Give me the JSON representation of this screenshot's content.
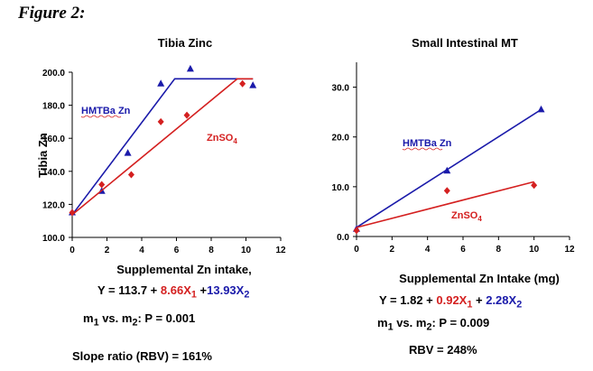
{
  "figure_label": "Figure 2:",
  "colors": {
    "red": "#d42020",
    "blue": "#1a1aaa",
    "axis": "#000000"
  },
  "chart_data": [
    {
      "type": "scatter",
      "title": "Tibia Zinc",
      "xlabel": "Supplemental Zn intake,",
      "ylabel": "Tibia Zn",
      "xlim": [
        0,
        12
      ],
      "ylim": [
        100,
        200
      ],
      "xticks": [
        "0",
        "2",
        "4",
        "6",
        "8",
        "10",
        "12"
      ],
      "yticks": [
        "100.0",
        "120.0",
        "140.0",
        "160.0",
        "180.0",
        "200.0"
      ],
      "series": [
        {
          "name": "HMTBa Zn",
          "color": "#1a1aaa",
          "marker": "triangle",
          "x": [
            0,
            1.7,
            3.2,
            5.1,
            6.8,
            10.4
          ],
          "y": [
            115,
            128,
            151,
            193,
            202,
            192
          ],
          "fit": {
            "x": [
              0,
              5.9,
              10.4
            ],
            "y": [
              113.7,
              196,
              196
            ]
          }
        },
        {
          "name": "ZnSO4",
          "color": "#d42020",
          "marker": "diamond",
          "x": [
            0,
            1.7,
            3.4,
            5.1,
            6.6,
            9.8
          ],
          "y": [
            115,
            132,
            138,
            170,
            174,
            193
          ],
          "fit": {
            "x": [
              0,
              9.5,
              10.4
            ],
            "y": [
              113.7,
              196,
              196
            ]
          }
        }
      ],
      "annotations": {
        "hmtba": "HMTBa Zn",
        "znso4_main": "ZnSO",
        "znso4_sub": "4"
      },
      "equation": {
        "intercept": "Y = 113.7 + ",
        "t1": "8.66X",
        "s1": "1",
        "plus": " +",
        "t2": "13.93X",
        "s2": "2"
      },
      "comparison": {
        "m1": "m",
        "s1": "1",
        "vs": " vs. m",
        "s2": "2",
        "p": ":  P = 0.001"
      },
      "ratio": "Slope ratio (RBV) = 161%"
    },
    {
      "type": "scatter",
      "title": "Small Intestinal MT",
      "xlabel": "Supplemental Zn Intake (mg)",
      "ylabel": "",
      "xlim": [
        0,
        12
      ],
      "ylim": [
        0,
        35
      ],
      "xticks": [
        "0",
        "2",
        "4",
        "6",
        "8",
        "10",
        "12"
      ],
      "yticks": [
        "0.0",
        "10.0",
        "20.0",
        "30.0"
      ],
      "series": [
        {
          "name": "HMTBa Zn",
          "color": "#1a1aaa",
          "marker": "triangle",
          "x": [
            0,
            5.1,
            10.4
          ],
          "y": [
            1.5,
            13.2,
            25.5
          ],
          "fit": {
            "x": [
              0,
              10.4
            ],
            "y": [
              1.82,
              25.5
            ]
          }
        },
        {
          "name": "ZnSO4",
          "color": "#d42020",
          "marker": "diamond",
          "x": [
            0,
            5.1,
            10.0
          ],
          "y": [
            1.2,
            9.2,
            10.3
          ],
          "fit": {
            "x": [
              0,
              10.0
            ],
            "y": [
              1.82,
              11.0
            ]
          }
        }
      ],
      "annotations": {
        "hmtba": "HMTBa Zn",
        "znso4_main": "ZnSO",
        "znso4_sub": "4"
      },
      "equation": {
        "intercept": "Y = 1.82 + ",
        "t1": "0.92X",
        "s1": "1",
        "plus": " + ",
        "t2": "2.28X",
        "s2": "2"
      },
      "comparison": {
        "m1": "m",
        "s1": "1",
        "vs": " vs. m",
        "s2": "2",
        "p": ":  P = 0.009"
      },
      "ratio": "RBV = 248%"
    }
  ]
}
